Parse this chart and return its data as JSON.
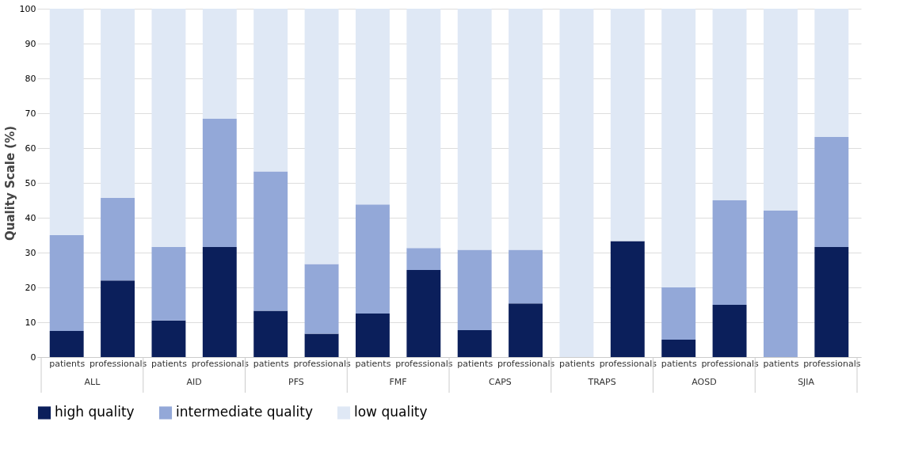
{
  "chart_data": {
    "type": "bar",
    "stacked": true,
    "ylabel": "Quality Scale (%)",
    "categories": [
      "patients",
      "professionals",
      "patients",
      "professionals",
      "patients",
      "professionals",
      "patients",
      "professionals",
      "patients",
      "professionals",
      "patients",
      "professionals",
      "patients",
      "professionals",
      "patients",
      "professionals"
    ],
    "annotations": [
      "ALL",
      "AID",
      "PFS",
      "FMF",
      "CAPS",
      "TRAPS",
      "AOSD",
      "SJIA"
    ],
    "series": [
      {
        "name": "high quality",
        "color": "#0b1f5b",
        "values": [
          7.5,
          22,
          10.5,
          31.6,
          13.3,
          6.7,
          12.5,
          25,
          7.7,
          15.4,
          0,
          33.3,
          5,
          15,
          0,
          31.6
        ]
      },
      {
        "name": "intermediate quality",
        "color": "#93a8d8",
        "values": [
          27.5,
          23.7,
          21.1,
          36.8,
          40,
          20,
          31.3,
          6.3,
          23.1,
          15.4,
          0,
          0,
          15,
          30,
          42.1,
          31.6
        ]
      },
      {
        "name": "low quality",
        "color": "#dfe8f5",
        "values": [
          65,
          54.3,
          68.4,
          31.6,
          46.7,
          73.3,
          56.2,
          68.7,
          69.2,
          69.2,
          100,
          66.7,
          80,
          55,
          57.9,
          36.8
        ]
      }
    ],
    "ylim": [
      0,
      100
    ],
    "yticks": [
      0,
      10,
      20,
      30,
      40,
      50,
      60,
      70,
      80,
      90,
      100
    ],
    "grid": "y",
    "legend": "bottom"
  }
}
